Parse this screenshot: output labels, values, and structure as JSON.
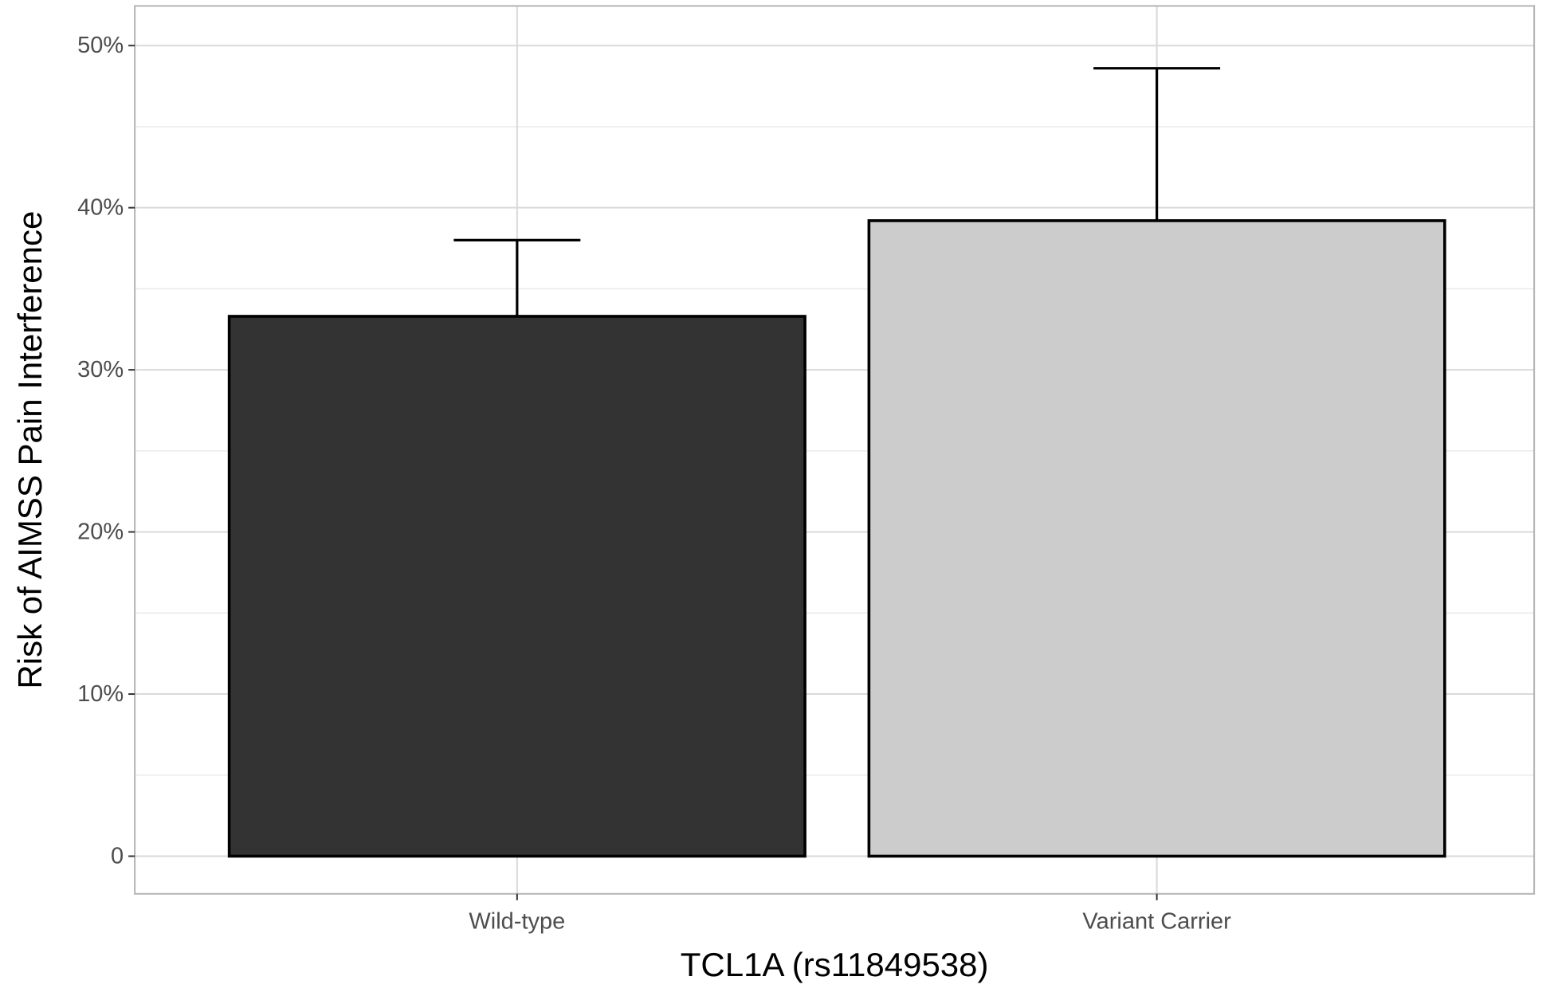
{
  "chart_data": {
    "type": "bar",
    "title": "",
    "xlabel": "TCL1A (rs11849538)",
    "ylabel": "Risk of AIMSS Pain Interference",
    "categories": [
      "Wild-type",
      "Variant Carrier"
    ],
    "values": [
      33.3,
      39.2
    ],
    "error_upper": [
      38.0,
      48.6
    ],
    "ylim": [
      0,
      50
    ],
    "y_ticks": [
      0,
      10,
      20,
      30,
      40,
      50
    ],
    "y_tick_labels": [
      "0",
      "10%",
      "20%",
      "30%",
      "40%",
      "50%"
    ],
    "grid": true,
    "legend": "none",
    "colors": {
      "bars": [
        "#333333",
        "#cccccc"
      ],
      "bar_outline": "#000000",
      "grid_major": "#d9d9d9",
      "grid_minor": "#ebebeb",
      "panel_border": "#b3b3b3",
      "background": "#ffffff"
    }
  }
}
